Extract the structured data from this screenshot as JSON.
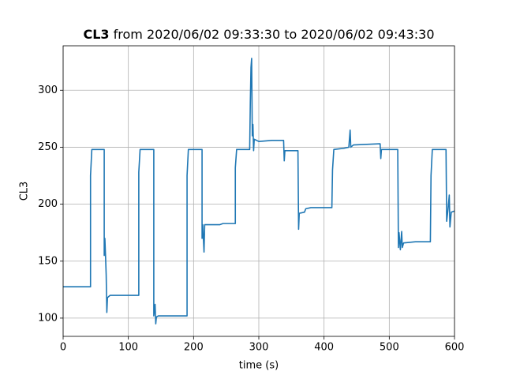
{
  "chart_data": {
    "type": "line",
    "title_bold": "CL3",
    "title": "from 2020/06/02 09:33:30 to 2020/06/02 09:43:30",
    "x_label": "time (s)",
    "y_label": "CL3",
    "color": "#1f77b4",
    "grid": true,
    "xlim": [
      0,
      600
    ],
    "xticks": [
      0,
      100,
      200,
      300,
      400,
      500,
      600
    ],
    "ylim": [
      84,
      339
    ],
    "yticks": [
      100,
      150,
      200,
      250,
      300
    ],
    "x": [
      0,
      42,
      42,
      44,
      63,
      63,
      64,
      65,
      66,
      67,
      68,
      70,
      72,
      116,
      116,
      118,
      139,
      139,
      141,
      142,
      143,
      146,
      190,
      190,
      192,
      213,
      213,
      214,
      216,
      217,
      240,
      245,
      264,
      264,
      266,
      286,
      287,
      288,
      289,
      290,
      291,
      292,
      293,
      300,
      320,
      338,
      339,
      340,
      360,
      361,
      362,
      370,
      372,
      380,
      412,
      413,
      415,
      430,
      438,
      440,
      441,
      445,
      486,
      487,
      488,
      513,
      514,
      515,
      517,
      519,
      520,
      522,
      540,
      563,
      564,
      566,
      587,
      588,
      590,
      592,
      593,
      595,
      600
    ],
    "values": [
      127.5,
      127.5,
      225,
      248,
      248,
      155,
      170,
      155,
      138,
      105,
      118,
      119,
      120,
      120,
      228,
      248,
      248,
      102,
      112,
      95,
      101,
      102,
      102,
      225,
      248,
      248,
      170,
      182,
      158,
      182,
      182,
      183,
      183,
      232,
      248,
      248,
      290,
      320,
      328,
      260,
      270,
      247,
      257,
      255,
      256,
      256,
      238,
      247,
      247,
      178,
      192,
      193,
      196,
      197,
      197,
      230,
      248,
      249,
      250,
      265,
      250,
      252,
      253,
      240,
      248,
      248,
      162,
      175,
      160,
      176,
      162,
      166,
      167,
      167,
      225,
      248,
      248,
      185,
      195,
      208,
      180,
      193,
      194
    ]
  }
}
